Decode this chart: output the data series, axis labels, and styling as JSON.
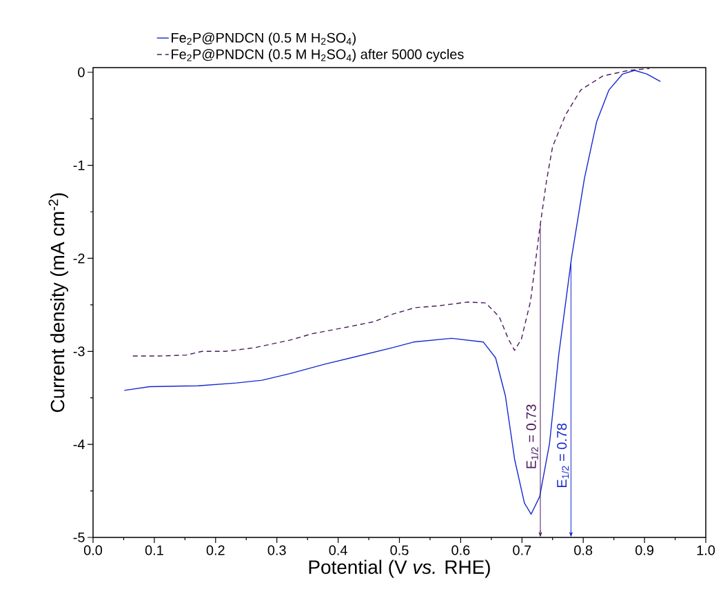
{
  "chart_data": {
    "type": "line",
    "xlabel": "Potential (V *vs.* RHE)",
    "ylabel": "Current density (mA cm$^{-2}$)",
    "xlim": [
      0,
      1
    ],
    "ylim": [
      -5,
      0.05
    ],
    "xticks": [
      {
        "value": 0,
        "label": "0.0"
      },
      0.1,
      0.2,
      0.3,
      0.4,
      0.5,
      0.6,
      0.7,
      0.8,
      0.9,
      {
        "value": 1,
        "label": "1.0"
      }
    ],
    "yticks": [
      -5,
      -4,
      -3,
      -2,
      -1,
      0
    ],
    "legend": "top",
    "marker": "none",
    "series": [
      {
        "name": "Fe$_{2}$P@PNDCN (0.5 M H$_{2}$SO$_{4}$)",
        "color": "#1428d0",
        "line_style": "solid",
        "x": [
          0.051,
          0.092,
          0.171,
          0.234,
          0.276,
          0.321,
          0.377,
          0.433,
          0.489,
          0.523,
          0.585,
          0.637,
          0.657,
          0.673,
          0.688,
          0.704,
          0.715,
          0.729,
          0.745,
          0.76,
          0.781,
          0.802,
          0.822,
          0.842,
          0.864,
          0.884,
          0.904,
          0.926
        ],
        "values": [
          -3.42,
          -3.38,
          -3.37,
          -3.34,
          -3.31,
          -3.24,
          -3.14,
          -3.05,
          -2.96,
          -2.9,
          -2.86,
          -2.9,
          -3.07,
          -3.48,
          -4.16,
          -4.63,
          -4.75,
          -4.56,
          -3.99,
          -3.04,
          -1.99,
          -1.14,
          -0.53,
          -0.19,
          -0.02,
          0.02,
          -0.02,
          -0.1
        ]
      },
      {
        "name": "Fe$_{2}$P@PNDCN (0.5 M H$_{2}$SO$_{4}$) after 5000 cycles",
        "color": "#4b1a5e",
        "line_style": "dashed",
        "x": [
          0.065,
          0.107,
          0.152,
          0.178,
          0.216,
          0.264,
          0.321,
          0.358,
          0.414,
          0.459,
          0.489,
          0.526,
          0.565,
          0.611,
          0.641,
          0.663,
          0.678,
          0.688,
          0.699,
          0.714,
          0.729,
          0.74,
          0.75,
          0.771,
          0.796,
          0.832,
          0.874,
          0.908
        ],
        "values": [
          -3.05,
          -3.05,
          -3.04,
          -3.0,
          -3.0,
          -2.96,
          -2.88,
          -2.81,
          -2.74,
          -2.68,
          -2.6,
          -2.53,
          -2.51,
          -2.47,
          -2.48,
          -2.63,
          -2.87,
          -2.99,
          -2.87,
          -2.46,
          -1.68,
          -1.17,
          -0.8,
          -0.46,
          -0.19,
          -0.04,
          0.02,
          0.04
        ]
      }
    ],
    "ref_lines": [
      {
        "axis": "x",
        "value": 0.78,
        "label": "E$_{1/2}$ = 0.78",
        "color": "#1428d0"
      },
      {
        "axis": "x",
        "value": 0.73,
        "label": "E$_{1/2}$ = 0.73",
        "color": "#4b1a5e"
      }
    ]
  }
}
